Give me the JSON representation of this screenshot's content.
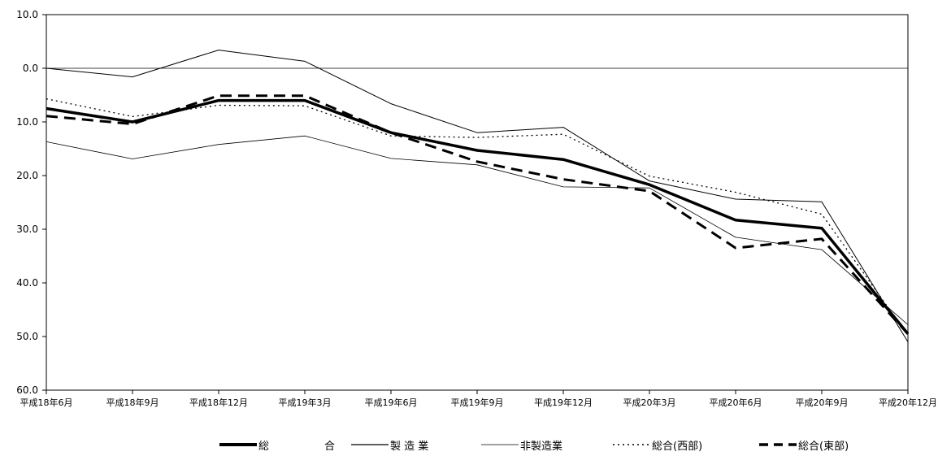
{
  "chart_data": {
    "type": "line",
    "title": "",
    "xlabel": "",
    "ylabel": "",
    "y_reversed": true,
    "ylim": [
      -10,
      60
    ],
    "yticks": [
      -10,
      0,
      10,
      20,
      30,
      40,
      50,
      60
    ],
    "ytick_labels": [
      "10.0",
      "0.0",
      "10.0",
      "20.0",
      "30.0",
      "40.0",
      "50.0",
      "60.0"
    ],
    "reference_line": 0,
    "grid": false,
    "legend_position": "bottom",
    "categories": [
      "平成18年6月",
      "平成18年9月",
      "平成18年12月",
      "平成19年3月",
      "平成19年6月",
      "平成19年9月",
      "平成19年12月",
      "平成20年3月",
      "平成20年6月",
      "平成20年9月",
      "平成20年12月"
    ],
    "series": [
      {
        "name": "総　　合",
        "style": "solid-thick",
        "color": "#000000",
        "values": [
          7.5,
          10.0,
          6.0,
          6.0,
          12.0,
          15.3,
          17.0,
          21.7,
          28.3,
          29.8,
          49.5
        ]
      },
      {
        "name": "製 造 業",
        "style": "solid-thin",
        "color": "#000000",
        "values": [
          0.0,
          1.6,
          -3.4,
          -1.3,
          6.6,
          12.0,
          11.0,
          21.0,
          24.4,
          24.9,
          51.0
        ]
      },
      {
        "name": "非製造業",
        "style": "solid-thin",
        "color": "#000000",
        "values": [
          13.7,
          16.9,
          14.2,
          12.6,
          16.8,
          18.0,
          22.1,
          22.3,
          31.5,
          33.8,
          47.8
        ]
      },
      {
        "name": "総合(西部)",
        "style": "dotted",
        "color": "#000000",
        "values": [
          5.7,
          9.0,
          6.9,
          7.0,
          12.6,
          12.9,
          12.3,
          20.1,
          23.1,
          27.2,
          49.8
        ]
      },
      {
        "name": "総合(東部)",
        "style": "dashed",
        "color": "#000000",
        "values": [
          8.9,
          10.4,
          5.1,
          5.1,
          12.0,
          17.4,
          20.7,
          22.9,
          33.5,
          31.8,
          49.5
        ]
      }
    ]
  }
}
